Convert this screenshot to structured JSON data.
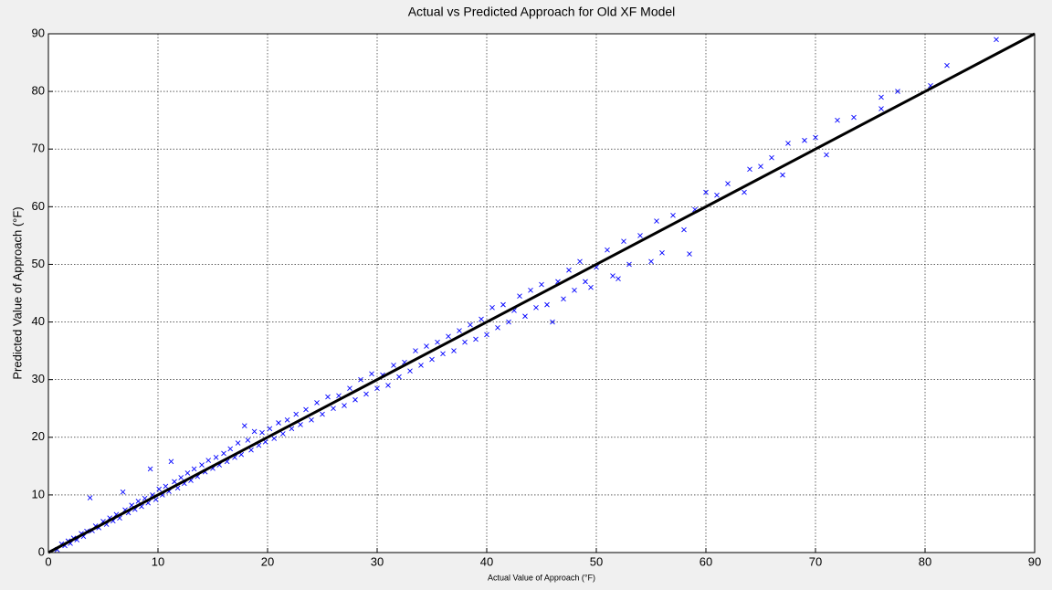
{
  "chart_data": {
    "type": "scatter",
    "title": "Actual vs Predicted Approach for Old XF Model",
    "x_label": "Actual Value of Approach (°F)",
    "y_label": "Predicted Value of Approach (°F)",
    "xlim": [
      0,
      90
    ],
    "ylim": [
      0,
      90
    ],
    "xticks": [
      0,
      10,
      20,
      30,
      40,
      50,
      60,
      70,
      80,
      90
    ],
    "yticks": [
      0,
      10,
      20,
      30,
      40,
      50,
      60,
      70,
      80,
      90
    ],
    "grid": true,
    "series": [
      {
        "type": "scatter",
        "marker": "x",
        "color": "#0000ff",
        "x": [
          0.8,
          1.2,
          1.5,
          1.8,
          2.0,
          2.3,
          2.6,
          3.0,
          3.2,
          3.5,
          3.8,
          4.0,
          4.3,
          4.6,
          5.0,
          5.3,
          5.6,
          5.9,
          6.2,
          6.5,
          6.8,
          7.0,
          7.3,
          7.6,
          7.9,
          8.2,
          8.5,
          8.8,
          9.1,
          9.3,
          9.5,
          9.8,
          10.1,
          10.4,
          10.7,
          11.0,
          11.2,
          11.5,
          11.8,
          12.1,
          12.4,
          12.7,
          13.0,
          13.3,
          13.6,
          14.0,
          14.3,
          14.6,
          15.0,
          15.3,
          15.6,
          16.0,
          16.3,
          16.6,
          17.0,
          17.3,
          17.6,
          17.9,
          18.2,
          18.5,
          18.8,
          19.2,
          19.5,
          19.8,
          20.2,
          20.6,
          21.0,
          21.4,
          21.8,
          22.2,
          22.6,
          23.0,
          23.5,
          24.0,
          24.5,
          25.0,
          25.5,
          26.0,
          26.5,
          27.0,
          27.5,
          28.0,
          28.5,
          29.0,
          29.5,
          30.0,
          30.5,
          31.0,
          31.5,
          32.0,
          32.5,
          33.0,
          33.5,
          34.0,
          34.5,
          35.0,
          35.5,
          36.0,
          36.5,
          37.0,
          37.5,
          38.0,
          38.5,
          39.0,
          39.5,
          40.0,
          40.5,
          41.0,
          41.5,
          42.0,
          42.5,
          43.0,
          43.5,
          44.0,
          44.5,
          45.0,
          45.5,
          46.0,
          46.5,
          47.0,
          47.5,
          48.0,
          48.5,
          49.0,
          49.5,
          50.0,
          51.0,
          51.5,
          52.0,
          52.5,
          53.0,
          54.0,
          55.0,
          55.5,
          56.0,
          57.0,
          58.0,
          58.5,
          59.0,
          60.0,
          61.0,
          62.0,
          63.5,
          64.0,
          65.0,
          66.0,
          67.0,
          67.5,
          69.0,
          70.0,
          71.0,
          72.0,
          73.5,
          76.0,
          76.0,
          77.5,
          80.5,
          82.0,
          86.5
        ],
        "values": [
          0.5,
          1.5,
          1.2,
          2.0,
          1.6,
          2.5,
          2.2,
          3.3,
          2.8,
          3.7,
          9.5,
          3.8,
          4.6,
          4.3,
          5.4,
          4.9,
          6.0,
          5.5,
          6.6,
          6.0,
          10.5,
          7.4,
          6.9,
          8.2,
          7.5,
          8.9,
          8.0,
          9.4,
          8.6,
          14.5,
          10.0,
          9.2,
          11.0,
          10.0,
          11.5,
          10.6,
          15.8,
          12.3,
          11.2,
          13.0,
          12.0,
          13.8,
          12.5,
          14.5,
          13.2,
          15.2,
          14.0,
          16.0,
          14.6,
          16.5,
          15.2,
          17.2,
          15.8,
          18.0,
          16.5,
          19.0,
          17.0,
          22.0,
          19.5,
          17.8,
          21.0,
          18.6,
          20.8,
          19.2,
          21.5,
          19.8,
          22.5,
          20.6,
          23.0,
          21.5,
          24.0,
          22.2,
          24.8,
          23.0,
          26.0,
          24.0,
          27.0,
          25.0,
          27.2,
          25.5,
          28.5,
          26.5,
          30.0,
          27.5,
          31.0,
          28.5,
          30.8,
          29.0,
          32.5,
          30.5,
          33.0,
          31.5,
          35.0,
          32.5,
          35.8,
          33.5,
          36.5,
          34.5,
          37.5,
          35.0,
          38.5,
          36.5,
          39.5,
          37.0,
          40.5,
          37.8,
          42.5,
          39.0,
          43.0,
          40.0,
          42.0,
          44.5,
          41.0,
          45.5,
          42.5,
          46.5,
          43.0,
          40.0,
          47.0,
          44.0,
          49.0,
          45.5,
          50.5,
          47.0,
          46.0,
          49.5,
          52.5,
          48.0,
          47.5,
          54.0,
          50.0,
          55.0,
          50.5,
          57.5,
          52.0,
          58.5,
          56.0,
          51.8,
          59.5,
          62.5,
          62.0,
          64.0,
          62.5,
          66.5,
          67.0,
          68.5,
          65.5,
          71.0,
          71.5,
          72.0,
          69.0,
          75.0,
          75.5,
          79.0,
          77.0,
          80.0,
          81.0,
          84.5,
          89.0
        ]
      },
      {
        "type": "line",
        "color": "#000000",
        "x": [
          0,
          90
        ],
        "values": [
          0,
          90
        ]
      }
    ]
  }
}
